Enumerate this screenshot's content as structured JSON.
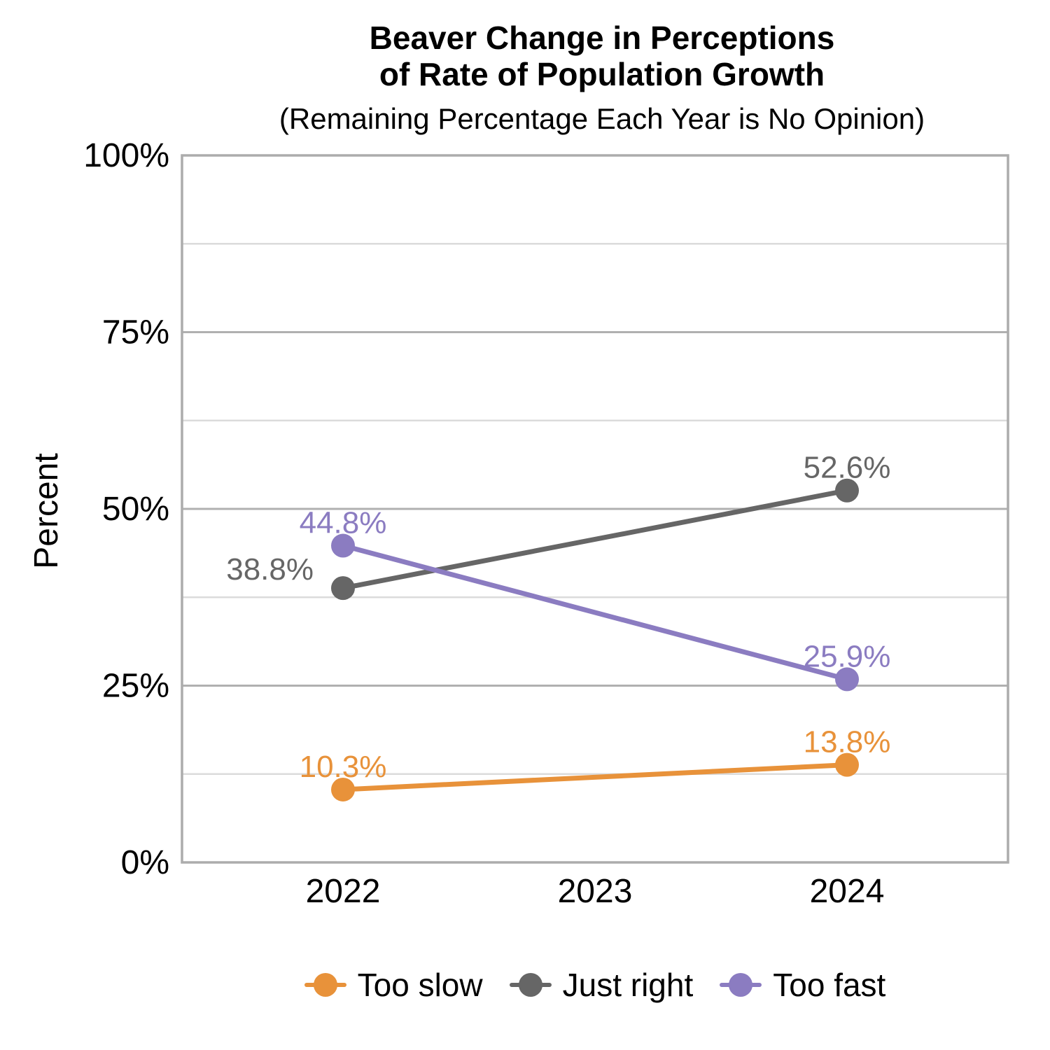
{
  "header": {
    "title": "Beaver Change in Perceptions\nof Rate of Population Growth",
    "subtitle": "(Remaining Percentage Each Year is No Opinion)"
  },
  "chart_data": {
    "type": "line",
    "title": "Beaver Change in Perceptions of Rate of Population Growth",
    "subtitle": "(Remaining Percentage Each Year is No Opinion)",
    "xlabel": "",
    "ylabel": "Percent",
    "categories": [
      "2022",
      "2023",
      "2024"
    ],
    "ylim": [
      0,
      100
    ],
    "grid": true,
    "legend_position": "bottom",
    "y_ticks": [
      {
        "value": 0,
        "label": "0%"
      },
      {
        "value": 25,
        "label": "25%"
      },
      {
        "value": 50,
        "label": "50%"
      },
      {
        "value": 75,
        "label": "75%"
      },
      {
        "value": 100,
        "label": "100%"
      }
    ],
    "y_minor_gridlines": [
      12.5,
      37.5,
      62.5,
      87.5
    ],
    "y_major_gridlines": [
      25,
      50,
      75
    ],
    "series": [
      {
        "name": "Too slow",
        "color": "#E8923A",
        "points": [
          {
            "x": "2022",
            "y": 10.3,
            "label": "10.3%",
            "label_pos": "above"
          },
          {
            "x": "2024",
            "y": 13.8,
            "label": "13.8%",
            "label_pos": "above"
          }
        ]
      },
      {
        "name": "Just right",
        "color": "#666666",
        "points": [
          {
            "x": "2022",
            "y": 38.8,
            "label": "38.8%",
            "label_pos": "left"
          },
          {
            "x": "2024",
            "y": 52.6,
            "label": "52.6%",
            "label_pos": "above"
          }
        ]
      },
      {
        "name": "Too fast",
        "color": "#8B7CC1",
        "points": [
          {
            "x": "2022",
            "y": 44.8,
            "label": "44.8%",
            "label_pos": "above"
          },
          {
            "x": "2024",
            "y": 25.9,
            "label": "25.9%",
            "label_pos": "above"
          }
        ]
      }
    ],
    "colors": {
      "grid_minor": "#DBDBDB",
      "grid_major": "#B0B0B0",
      "panel_border": "#ACACAC",
      "tick_text": "#000000"
    }
  }
}
